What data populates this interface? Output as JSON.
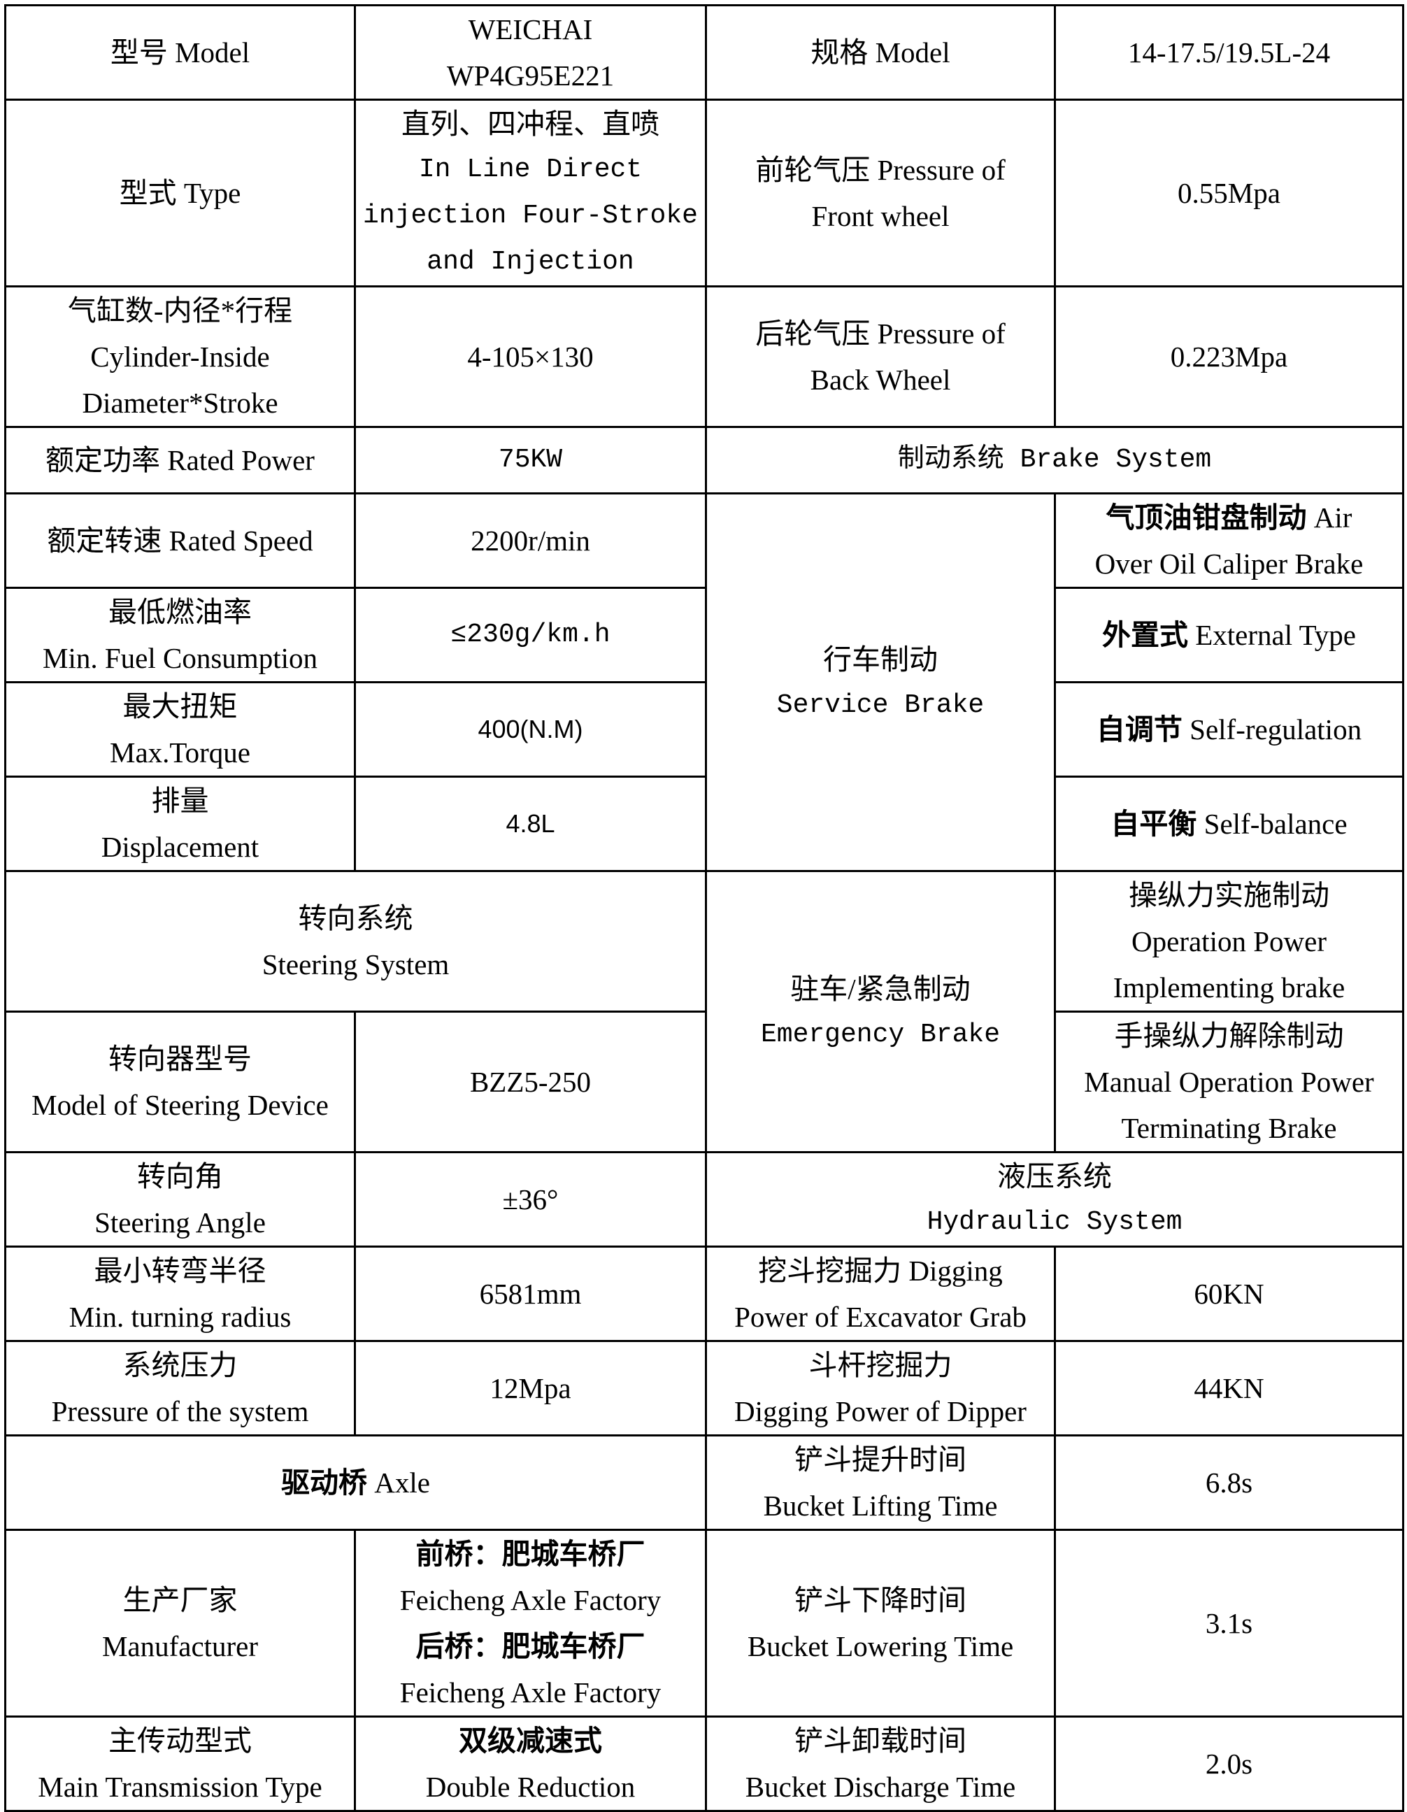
{
  "r1": {
    "a": "型号 Model",
    "b": [
      "WEICHAI",
      "WP4G95E221"
    ],
    "c": "规格 Model",
    "d": "14-17.5/19.5L-24"
  },
  "r2": {
    "a": "型式 Type",
    "b": [
      "直列、四冲程、直喷",
      "In Line Direct",
      "injection Four-Stroke",
      "and Injection"
    ],
    "c": [
      "前轮气压 Pressure of",
      "Front wheel"
    ],
    "d": "0.55Mpa"
  },
  "r3": {
    "a": [
      "气缸数-内径*行程",
      "Cylinder-Inside",
      "Diameter*Stroke"
    ],
    "b": "4-105×130",
    "c": [
      "后轮气压 Pressure of",
      "Back Wheel"
    ],
    "d": "0.223Mpa"
  },
  "r4": {
    "a": "额定功率 Rated Power",
    "b": "75KW",
    "c": "制动系统 Brake System"
  },
  "r5": {
    "a": "额定转速 Rated Speed",
    "b": "2200r/min",
    "c": [
      "行车制动",
      "Service Brake"
    ],
    "d_zh": "气顶油钳盘制动",
    "d_en1": "Air",
    "d_en2": "Over Oil Caliper Brake"
  },
  "r6": {
    "a": [
      "最低燃油率",
      "Min. Fuel Consumption"
    ],
    "b": "≤230g/km.h",
    "d_zh": "外置式",
    "d_en": "External Type"
  },
  "r7": {
    "a": [
      "最大扭矩",
      "Max.Torque"
    ],
    "b": "400(N.M)",
    "d_zh": "自调节",
    "d_en": "Self-regulation"
  },
  "r8": {
    "a": [
      "排量",
      "Displacement"
    ],
    "b": "4.8L",
    "d_zh": "自平衡",
    "d_en": "Self-balance"
  },
  "r9": {
    "ab": [
      "转向系统",
      "Steering System"
    ],
    "c": [
      "驻车/紧急制动",
      "Emergency Brake"
    ],
    "d": [
      "操纵力实施制动",
      "Operation Power",
      "Implementing brake"
    ]
  },
  "r10": {
    "a": [
      "转向器型号",
      "Model of Steering Device"
    ],
    "b": "BZZ5-250",
    "d": [
      "手操纵力解除制动",
      "Manual Operation Power",
      "Terminating Brake"
    ]
  },
  "r11": {
    "a": [
      "转向角",
      "Steering Angle"
    ],
    "b": "±36°",
    "cd": [
      "液压系统",
      "Hydraulic System"
    ]
  },
  "r12": {
    "a": [
      "最小转弯半径",
      "Min. turning radius"
    ],
    "b": "6581mm",
    "c": [
      "挖斗挖掘力 Digging",
      "Power of Excavator Grab"
    ],
    "d": "60KN"
  },
  "r13": {
    "a": [
      "系统压力",
      "Pressure of the system"
    ],
    "b": "12Mpa",
    "c": [
      "斗杆挖掘力",
      "Digging Power of Dipper"
    ],
    "d": "44KN"
  },
  "r14": {
    "ab_zh": "驱动桥",
    "ab_en": "Axle",
    "c": [
      "铲斗提升时间",
      "Bucket Lifting Time"
    ],
    "d": "6.8s"
  },
  "r15": {
    "a": [
      "生产厂家",
      "Manufacturer"
    ],
    "b": [
      "前桥：肥城车桥厂",
      "Feicheng Axle Factory",
      "后桥：肥城车桥厂",
      "Feicheng Axle Factory"
    ],
    "c": [
      "铲斗下降时间",
      "Bucket Lowering Time"
    ],
    "d": "3.1s"
  },
  "r16": {
    "a": [
      "主传动型式",
      "Main Transmission Type"
    ],
    "b": [
      "双级减速式",
      "Double Reduction"
    ],
    "c": [
      "铲斗卸载时间",
      "Bucket Discharge Time"
    ],
    "d": "2.0s"
  }
}
